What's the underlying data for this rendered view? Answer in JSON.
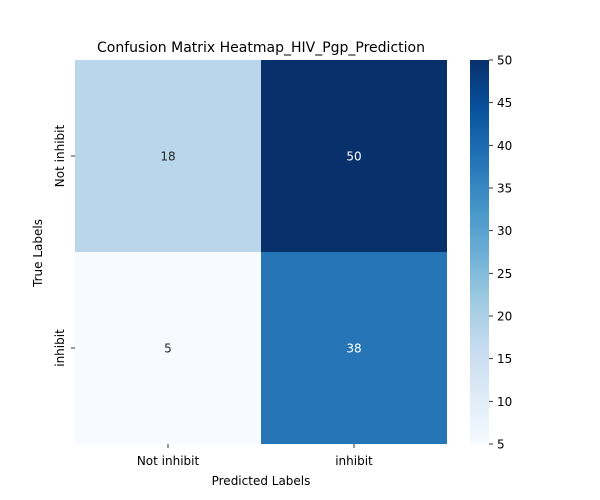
{
  "chart_data": {
    "type": "heatmap",
    "title": "Confusion Matrix Heatmap_HIV_Pgp_Prediction",
    "xlabel": "Predicted Labels",
    "ylabel": "True Labels",
    "x_categories": [
      "Not inhibit",
      "inhibit"
    ],
    "y_categories": [
      "Not inhibit",
      "inhibit"
    ],
    "values": [
      [
        18,
        50
      ],
      [
        5,
        38
      ]
    ],
    "colorbar": {
      "min": 5,
      "max": 50,
      "ticks": [
        5,
        10,
        15,
        20,
        25,
        30,
        35,
        40,
        45,
        50
      ],
      "colormap": "Blues"
    }
  }
}
